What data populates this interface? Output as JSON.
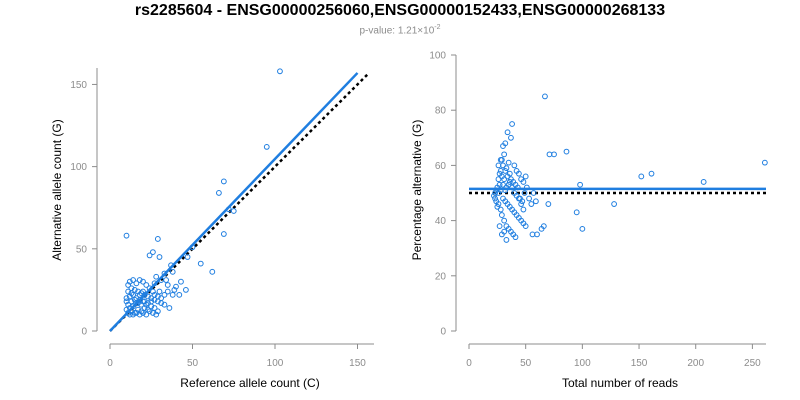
{
  "colors": {
    "accent": "#1f7ee0",
    "point": "#1f7ee0",
    "reference_line": "#000000",
    "axis": "#8c8c8c"
  },
  "chart_data": [
    {
      "type": "scatter",
      "title": "rs2285604 - ENSG00000256060,ENSG00000152433,ENSG00000268133",
      "subtitle_prefix": "p-value: 1.21×10",
      "subtitle_exponent": "-2",
      "xlabel": "Reference allele count (C)",
      "ylabel": "Alternative allele count (G)",
      "xlim": [
        0,
        160
      ],
      "ylim": [
        0,
        160
      ],
      "xticks": [
        0,
        50,
        100,
        150
      ],
      "yticks": [
        0,
        50,
        100,
        150
      ],
      "fit_line": {
        "x": [
          0,
          150
        ],
        "y": [
          0,
          157
        ]
      },
      "reference_line": {
        "x": [
          0,
          157
        ],
        "y": [
          0,
          157
        ]
      },
      "points": [
        [
          103,
          158
        ],
        [
          95,
          112
        ],
        [
          69,
          91
        ],
        [
          66,
          84
        ],
        [
          72,
          74
        ],
        [
          75,
          73
        ],
        [
          69,
          59
        ],
        [
          62,
          36
        ],
        [
          55,
          41
        ],
        [
          50,
          51
        ],
        [
          47,
          45
        ],
        [
          10,
          58
        ],
        [
          29,
          56
        ],
        [
          26,
          48
        ],
        [
          24,
          46
        ],
        [
          30,
          45
        ],
        [
          37,
          40
        ],
        [
          38,
          36
        ],
        [
          33,
          35
        ],
        [
          31,
          31
        ],
        [
          34,
          31
        ],
        [
          28,
          33
        ],
        [
          27,
          29
        ],
        [
          35,
          28
        ],
        [
          40,
          27
        ],
        [
          43,
          30
        ],
        [
          46,
          25
        ],
        [
          38,
          22
        ],
        [
          30,
          24
        ],
        [
          26,
          24
        ],
        [
          24,
          26
        ],
        [
          22,
          28
        ],
        [
          20,
          30
        ],
        [
          18,
          31
        ],
        [
          16,
          29
        ],
        [
          14,
          31
        ],
        [
          12,
          30
        ],
        [
          11,
          28
        ],
        [
          13,
          26
        ],
        [
          15,
          25
        ],
        [
          17,
          24
        ],
        [
          19,
          23
        ],
        [
          21,
          22
        ],
        [
          23,
          21
        ],
        [
          25,
          20
        ],
        [
          27,
          19
        ],
        [
          29,
          18
        ],
        [
          31,
          17
        ],
        [
          33,
          16
        ],
        [
          36,
          14
        ],
        [
          22,
          16
        ],
        [
          20,
          18
        ],
        [
          18,
          19
        ],
        [
          16,
          17
        ],
        [
          14,
          15
        ],
        [
          12,
          14
        ],
        [
          10,
          13
        ],
        [
          11,
          11
        ],
        [
          13,
          12
        ],
        [
          15,
          11
        ],
        [
          17,
          13
        ],
        [
          19,
          12
        ],
        [
          21,
          14
        ],
        [
          23,
          13
        ],
        [
          25,
          15
        ],
        [
          27,
          14
        ],
        [
          29,
          12
        ],
        [
          12,
          21
        ],
        [
          14,
          22
        ],
        [
          16,
          20
        ],
        [
          18,
          22
        ],
        [
          20,
          24
        ],
        [
          10,
          18
        ],
        [
          11,
          16
        ],
        [
          13,
          18
        ],
        [
          15,
          19
        ],
        [
          17,
          17
        ],
        [
          19,
          16
        ],
        [
          21,
          18
        ],
        [
          23,
          17
        ],
        [
          25,
          18
        ],
        [
          27,
          22
        ],
        [
          29,
          21
        ],
        [
          31,
          20
        ],
        [
          33,
          22
        ],
        [
          35,
          24
        ],
        [
          12,
          10
        ],
        [
          14,
          10
        ],
        [
          16,
          11
        ],
        [
          18,
          10
        ],
        [
          20,
          11
        ],
        [
          22,
          10
        ],
        [
          24,
          12
        ],
        [
          26,
          11
        ],
        [
          28,
          10
        ],
        [
          11,
          24
        ],
        [
          13,
          23
        ],
        [
          10,
          20
        ],
        [
          42,
          22
        ],
        [
          39,
          25
        ]
      ]
    },
    {
      "type": "scatter",
      "xlabel": "Total number of reads",
      "ylabel": "Percentage alternative (G)",
      "xlim": [
        0,
        262
      ],
      "ylim": [
        0,
        100
      ],
      "xticks": [
        0,
        50,
        100,
        150,
        200,
        250
      ],
      "yticks": [
        0,
        20,
        40,
        60,
        80,
        100
      ],
      "fit_line": {
        "x": [
          0,
          262
        ],
        "y": [
          51.5,
          51.5
        ]
      },
      "reference_line": {
        "x": [
          0,
          262
        ],
        "y": [
          50,
          50
        ]
      },
      "points": [
        [
          67,
          85
        ],
        [
          261,
          61
        ],
        [
          38,
          75
        ],
        [
          34,
          72
        ],
        [
          37,
          70
        ],
        [
          32,
          68
        ],
        [
          71,
          64
        ],
        [
          75,
          64
        ],
        [
          86,
          65
        ],
        [
          30,
          67
        ],
        [
          31,
          64
        ],
        [
          29,
          62
        ],
        [
          35,
          61
        ],
        [
          33,
          59
        ],
        [
          28,
          58
        ],
        [
          36,
          57
        ],
        [
          40,
          60
        ],
        [
          42,
          58
        ],
        [
          44,
          57
        ],
        [
          46,
          55
        ],
        [
          48,
          54
        ],
        [
          50,
          56
        ],
        [
          152,
          56
        ],
        [
          161,
          57
        ],
        [
          207,
          54
        ],
        [
          98,
          53
        ],
        [
          26,
          55
        ],
        [
          27,
          53
        ],
        [
          25,
          52
        ],
        [
          24,
          51
        ],
        [
          23,
          50
        ],
        [
          22,
          49
        ],
        [
          30,
          48
        ],
        [
          32,
          47
        ],
        [
          34,
          46
        ],
        [
          36,
          45
        ],
        [
          38,
          44
        ],
        [
          40,
          43
        ],
        [
          42,
          42
        ],
        [
          44,
          41
        ],
        [
          46,
          40
        ],
        [
          48,
          39
        ],
        [
          50,
          38
        ],
        [
          28,
          44
        ],
        [
          26,
          46
        ],
        [
          29,
          42
        ],
        [
          31,
          40
        ],
        [
          33,
          38
        ],
        [
          35,
          37
        ],
        [
          37,
          36
        ],
        [
          39,
          35
        ],
        [
          41,
          34
        ],
        [
          56,
          35
        ],
        [
          60,
          35
        ],
        [
          64,
          37
        ],
        [
          66,
          38
        ],
        [
          70,
          46
        ],
        [
          95,
          43
        ],
        [
          100,
          37
        ],
        [
          128,
          46
        ],
        [
          27,
          38
        ],
        [
          29,
          35
        ],
        [
          31,
          36
        ],
        [
          33,
          33
        ],
        [
          45,
          48
        ],
        [
          47,
          47
        ],
        [
          49,
          50
        ],
        [
          51,
          52
        ],
        [
          53,
          48
        ],
        [
          55,
          46
        ],
        [
          57,
          50
        ],
        [
          59,
          47
        ],
        [
          43,
          52
        ],
        [
          41,
          53
        ],
        [
          39,
          54
        ],
        [
          37,
          55
        ],
        [
          35,
          53
        ],
        [
          33,
          52
        ],
        [
          31,
          55
        ],
        [
          29,
          56
        ],
        [
          27,
          57
        ],
        [
          26,
          60
        ],
        [
          28,
          62
        ],
        [
          30,
          60
        ],
        [
          32,
          58
        ],
        [
          34,
          56
        ],
        [
          36,
          54
        ],
        [
          38,
          52
        ],
        [
          40,
          50
        ],
        [
          42,
          49
        ],
        [
          44,
          48
        ],
        [
          46,
          46
        ],
        [
          48,
          44
        ],
        [
          24,
          47
        ],
        [
          25,
          45
        ],
        [
          23,
          48
        ],
        [
          26,
          50
        ],
        [
          28,
          51
        ],
        [
          30,
          53
        ],
        [
          32,
          51
        ]
      ]
    }
  ]
}
